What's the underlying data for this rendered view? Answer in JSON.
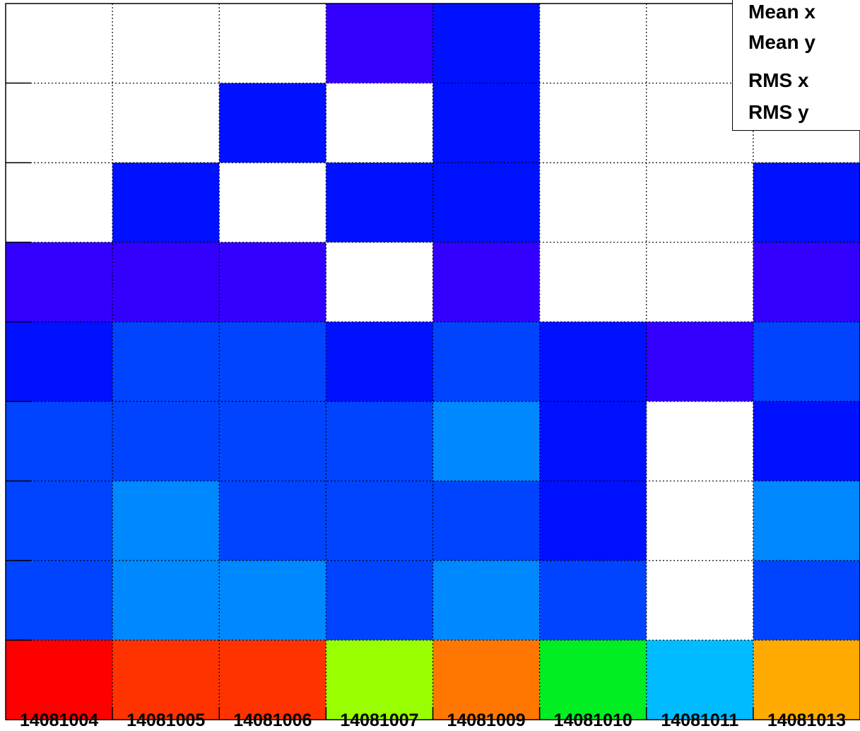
{
  "chart_data": {
    "type": "heatmap",
    "title": "",
    "xlabel": "",
    "ylabel": "",
    "x_categories": [
      "14081004",
      "14081005",
      "14081006",
      "14081007",
      "14081009",
      "14081010",
      "14081011",
      "14081013"
    ],
    "n_rows": 9,
    "grid": true,
    "colormap": "rainbow (blue-low to red-high)",
    "empty_color": "#ffffff",
    "cells_top_to_bottom": [
      [
        null,
        null,
        null,
        0.05,
        0.1,
        null,
        null,
        null
      ],
      [
        null,
        null,
        0.1,
        null,
        0.1,
        null,
        null,
        null
      ],
      [
        null,
        0.1,
        null,
        0.1,
        0.1,
        null,
        null,
        0.1
      ],
      [
        0.05,
        0.05,
        0.05,
        null,
        0.05,
        null,
        null,
        0.05
      ],
      [
        0.12,
        0.2,
        0.2,
        0.12,
        0.2,
        0.12,
        0.05,
        0.2
      ],
      [
        0.2,
        0.2,
        0.2,
        0.2,
        0.35,
        0.12,
        null,
        0.12
      ],
      [
        0.2,
        0.35,
        0.2,
        0.2,
        0.2,
        0.12,
        null,
        0.35
      ],
      [
        0.2,
        0.35,
        0.35,
        0.2,
        0.35,
        0.2,
        null,
        0.2
      ],
      [
        1.0,
        0.95,
        0.95,
        0.62,
        0.88,
        0.55,
        0.4,
        0.83
      ]
    ],
    "cell_colors_top_to_bottom": [
      [
        "#ffffff",
        "#ffffff",
        "#ffffff",
        "#3300ff",
        "#0011ff",
        "#ffffff",
        "#ffffff",
        "#ffffff"
      ],
      [
        "#ffffff",
        "#ffffff",
        "#0011ff",
        "#ffffff",
        "#0011ff",
        "#ffffff",
        "#ffffff",
        "#ffffff"
      ],
      [
        "#ffffff",
        "#0011ff",
        "#ffffff",
        "#0011ff",
        "#0011ff",
        "#ffffff",
        "#ffffff",
        "#0011ff"
      ],
      [
        "#3300ff",
        "#3300ff",
        "#3300ff",
        "#ffffff",
        "#3300ff",
        "#ffffff",
        "#ffffff",
        "#3300ff"
      ],
      [
        "#0011ff",
        "#0044ff",
        "#0044ff",
        "#0011ff",
        "#0044ff",
        "#0011ff",
        "#3300ff",
        "#0044ff"
      ],
      [
        "#0044ff",
        "#0044ff",
        "#0044ff",
        "#0044ff",
        "#0088ff",
        "#0011ff",
        "#ffffff",
        "#0011ff"
      ],
      [
        "#0044ff",
        "#0088ff",
        "#0044ff",
        "#0044ff",
        "#0044ff",
        "#0011ff",
        "#ffffff",
        "#0088ff"
      ],
      [
        "#0044ff",
        "#0088ff",
        "#0088ff",
        "#0044ff",
        "#0088ff",
        "#0044ff",
        "#ffffff",
        "#0044ff"
      ],
      [
        "#ff0000",
        "#ff3300",
        "#ff3300",
        "#99ff00",
        "#ff7700",
        "#00ee22",
        "#00bbff",
        "#ffaa00"
      ]
    ],
    "legend": "top-right"
  },
  "stats_box": {
    "labels": [
      "Mean x",
      "Mean y",
      "RMS x",
      "RMS y"
    ]
  }
}
